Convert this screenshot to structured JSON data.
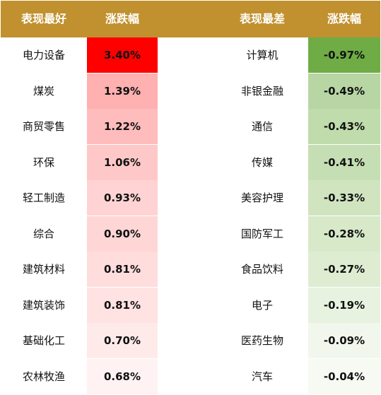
{
  "chart_data": {
    "type": "table",
    "columns": [
      "表现最好",
      "涨跌幅",
      "表现最差",
      "涨跌幅"
    ],
    "best": {
      "header": "表现最好",
      "change_header": "涨跌幅",
      "rows": [
        {
          "name": "电力设备",
          "change": "3.40%",
          "value": 3.4,
          "color": "#ff0000"
        },
        {
          "name": "煤炭",
          "change": "1.39%",
          "value": 1.39,
          "color": "#ffb0b0"
        },
        {
          "name": "商贸零售",
          "change": "1.22%",
          "value": 1.22,
          "color": "#ffbcbc"
        },
        {
          "name": "环保",
          "change": "1.06%",
          "value": 1.06,
          "color": "#ffc8c8"
        },
        {
          "name": "轻工制造",
          "change": "0.93%",
          "value": 0.93,
          "color": "#ffd3d3"
        },
        {
          "name": "综合",
          "change": "0.90%",
          "value": 0.9,
          "color": "#ffd6d6"
        },
        {
          "name": "建筑材料",
          "change": "0.81%",
          "value": 0.81,
          "color": "#ffdddd"
        },
        {
          "name": "建筑装饰",
          "change": "0.81%",
          "value": 0.81,
          "color": "#ffe2e2"
        },
        {
          "name": "基础化工",
          "change": "0.70%",
          "value": 0.7,
          "color": "#ffeaea"
        },
        {
          "name": "农林牧渔",
          "change": "0.68%",
          "value": 0.68,
          "color": "#fff2f2"
        }
      ]
    },
    "worst": {
      "header": "表现最差",
      "change_header": "涨跌幅",
      "rows": [
        {
          "name": "计算机",
          "change": "-0.97%",
          "value": -0.97,
          "color": "#6fac45"
        },
        {
          "name": "非银金融",
          "change": "-0.49%",
          "value": -0.49,
          "color": "#b8d6a4"
        },
        {
          "name": "通信",
          "change": "-0.43%",
          "value": -0.43,
          "color": "#c0dbac"
        },
        {
          "name": "传媒",
          "change": "-0.41%",
          "value": -0.41,
          "color": "#c6deb3"
        },
        {
          "name": "美容护理",
          "change": "-0.33%",
          "value": -0.33,
          "color": "#d0e4c0"
        },
        {
          "name": "国防军工",
          "change": "-0.28%",
          "value": -0.28,
          "color": "#d8e9ca"
        },
        {
          "name": "食品饮料",
          "change": "-0.27%",
          "value": -0.27,
          "color": "#deedd2"
        },
        {
          "name": "电子",
          "change": "-0.19%",
          "value": -0.19,
          "color": "#e8f2e0"
        },
        {
          "name": "医药生物",
          "change": "-0.09%",
          "value": -0.09,
          "color": "#f1f7ed"
        },
        {
          "name": "汽车",
          "change": "-0.04%",
          "value": -0.04,
          "color": "#f6faf3"
        }
      ]
    }
  },
  "colors": {
    "header_bg": "#c0912e",
    "header_text": "#ffffff"
  }
}
